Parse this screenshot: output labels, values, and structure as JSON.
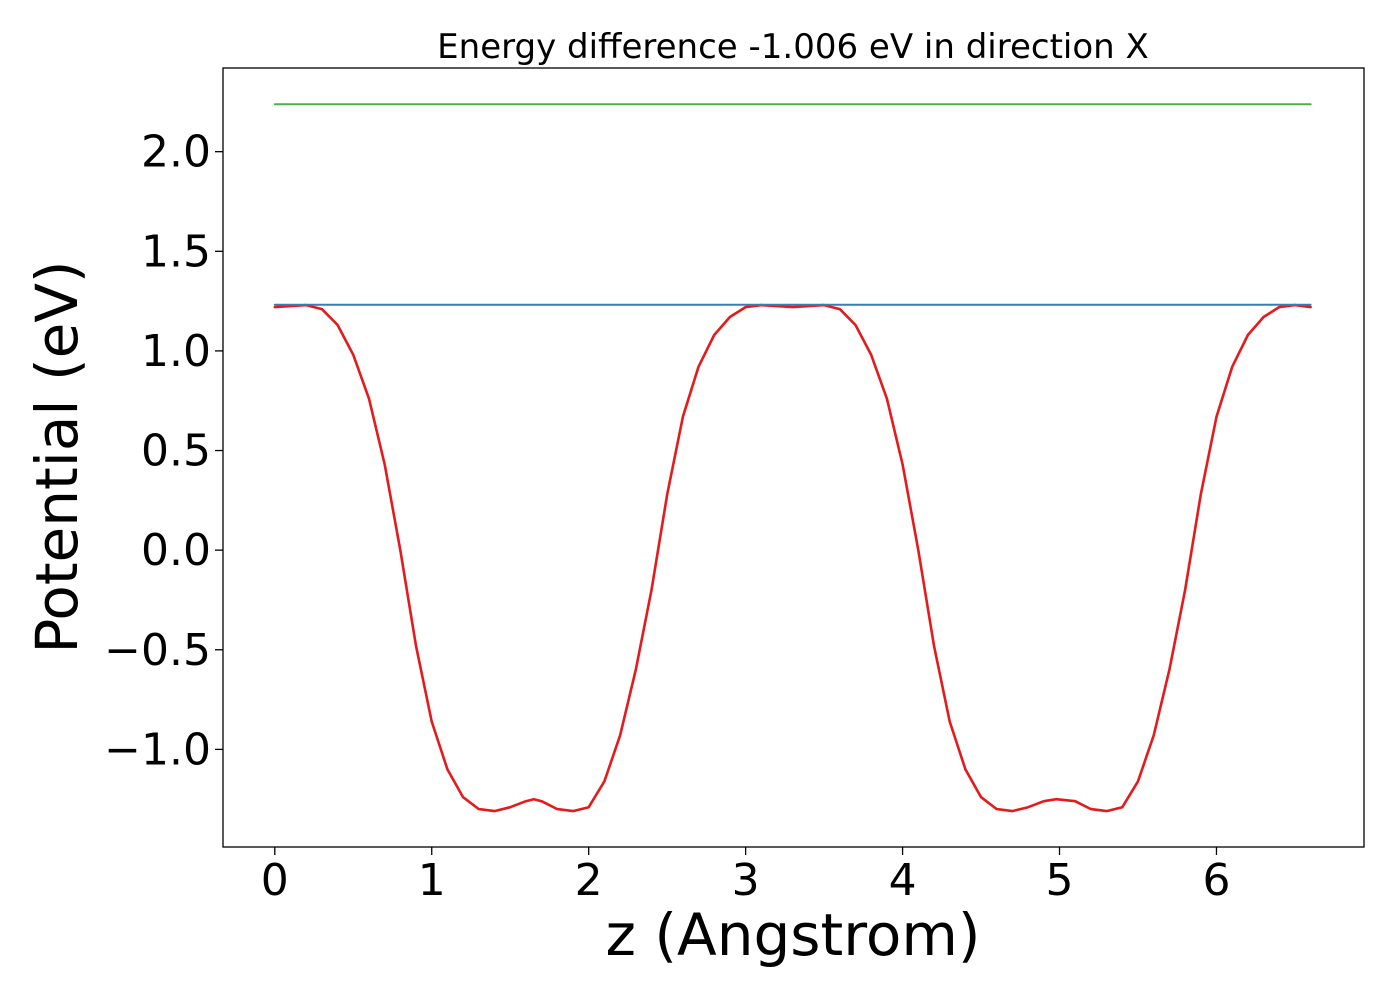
{
  "chart_data": {
    "type": "line",
    "title": "Energy difference -1.006 eV in direction X",
    "xlabel": "z (Angstrom)",
    "ylabel": "Potential (eV)",
    "xlim": [
      -0.33,
      6.94
    ],
    "ylim": [
      -1.49,
      2.42
    ],
    "xticks": [
      0,
      1,
      2,
      3,
      4,
      5,
      6
    ],
    "xtick_labels": [
      "0",
      "1",
      "2",
      "3",
      "4",
      "5",
      "6"
    ],
    "yticks": [
      -1.0,
      -0.5,
      0.0,
      0.5,
      1.0,
      1.5,
      2.0
    ],
    "ytick_labels": [
      "−1.0",
      "−0.5",
      "0.0",
      "0.5",
      "1.0",
      "1.5",
      "2.0"
    ],
    "grid": false,
    "legend": "none",
    "colors": {
      "potential": "#e41a1c",
      "average": "#377eb8",
      "upper": "#4daf4a"
    },
    "series": [
      {
        "kind": "curve",
        "color": "#e41a1c",
        "x": [
          0,
          0.1,
          0.2,
          0.3,
          0.4,
          0.5,
          0.6,
          0.7,
          0.8,
          0.9,
          1.0,
          1.1,
          1.2,
          1.3,
          1.4,
          1.5,
          1.6,
          1.65,
          1.7,
          1.8,
          1.9,
          2.0,
          2.1,
          2.2,
          2.3,
          2.4,
          2.5,
          2.6,
          2.7,
          2.8,
          2.9,
          3.0,
          3.1,
          3.2,
          3.3,
          3.4,
          3.5,
          3.6,
          3.7,
          3.8,
          3.9,
          4.0,
          4.1,
          4.2,
          4.3,
          4.4,
          4.5,
          4.6,
          4.7,
          4.8,
          4.9,
          4.98,
          5.1,
          5.2,
          5.3,
          5.4,
          5.5,
          5.6,
          5.7,
          5.8,
          5.9,
          6.0,
          6.1,
          6.2,
          6.3,
          6.4,
          6.5,
          6.6
        ],
        "y": [
          1.22,
          1.225,
          1.23,
          1.21,
          1.13,
          0.98,
          0.76,
          0.43,
          0.0,
          -0.48,
          -0.86,
          -1.1,
          -1.24,
          -1.3,
          -1.31,
          -1.29,
          -1.26,
          -1.25,
          -1.26,
          -1.3,
          -1.31,
          -1.29,
          -1.16,
          -0.93,
          -0.6,
          -0.2,
          0.28,
          0.67,
          0.92,
          1.08,
          1.17,
          1.22,
          1.23,
          1.225,
          1.22,
          1.225,
          1.23,
          1.21,
          1.13,
          0.98,
          0.76,
          0.43,
          0.0,
          -0.48,
          -0.86,
          -1.1,
          -1.24,
          -1.3,
          -1.31,
          -1.29,
          -1.26,
          -1.25,
          -1.26,
          -1.3,
          -1.31,
          -1.29,
          -1.16,
          -0.93,
          -0.6,
          -0.2,
          0.28,
          0.67,
          0.92,
          1.08,
          1.17,
          1.22,
          1.23,
          1.22
        ]
      },
      {
        "kind": "hline",
        "color": "#377eb8",
        "x": [
          0,
          6.6
        ],
        "y": [
          1.232,
          1.232
        ]
      },
      {
        "kind": "hline",
        "color": "#4daf4a",
        "x": [
          0,
          6.6
        ],
        "y": [
          2.238,
          2.238
        ]
      }
    ]
  }
}
